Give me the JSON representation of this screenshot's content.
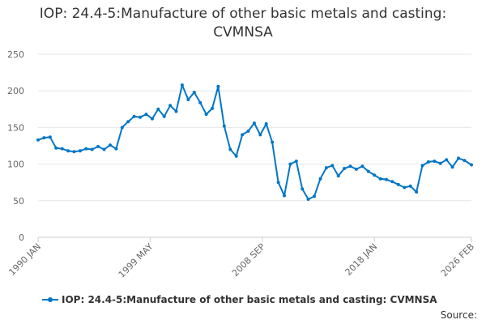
{
  "chart_data": {
    "type": "line",
    "title_line1": "IOP: 24.4-5:Manufacture of other basic metals and casting:",
    "title_line2": "CVMNSA",
    "y_ticks": [
      "0",
      "50",
      "100",
      "150",
      "200",
      "250"
    ],
    "ylim": [
      0,
      250
    ],
    "x_ticks": [
      "1990 JAN",
      "1999 MAY",
      "2008 SEP",
      "2018 JAN",
      "2026 FEB"
    ],
    "x_tick_decimal_years": [
      1990.0,
      1999.33,
      2008.67,
      2018.0,
      2026.08
    ],
    "xlim": [
      1990.0,
      2026.08
    ],
    "grid": true,
    "legend_position": "bottom",
    "color": "#0076c6",
    "source_label": "Source:",
    "series": [
      {
        "name": "IOP: 24.4-5:Manufacture of other basic metals and casting: CVMNSA",
        "x": [
          1990.0,
          1990.5,
          1991.0,
          1991.5,
          1992.0,
          1992.5,
          1993.0,
          1993.5,
          1994.0,
          1994.5,
          1995.0,
          1995.5,
          1996.0,
          1996.5,
          1997.0,
          1997.5,
          1998.0,
          1998.5,
          1999.0,
          1999.5,
          2000.0,
          2000.5,
          2001.0,
          2001.5,
          2002.0,
          2002.5,
          2003.0,
          2003.5,
          2004.0,
          2004.5,
          2005.0,
          2005.5,
          2006.0,
          2006.5,
          2007.0,
          2007.5,
          2008.0,
          2008.5,
          2009.0,
          2009.5,
          2010.0,
          2010.5,
          2011.0,
          2011.5,
          2012.0,
          2012.5,
          2013.0,
          2013.5,
          2014.0,
          2014.5,
          2015.0,
          2015.5,
          2016.0,
          2016.5,
          2017.0,
          2017.5,
          2018.0,
          2018.5,
          2019.0,
          2019.5,
          2020.0,
          2020.5,
          2021.0,
          2021.5,
          2022.0,
          2022.5,
          2023.0,
          2023.5,
          2024.0,
          2024.5,
          2025.0,
          2025.5,
          2026.08
        ],
        "values": [
          133,
          136,
          137,
          122,
          121,
          118,
          117,
          118,
          121,
          120,
          124,
          120,
          126,
          121,
          150,
          158,
          165,
          164,
          168,
          162,
          175,
          165,
          180,
          172,
          208,
          188,
          198,
          184,
          168,
          176,
          206,
          152,
          120,
          111,
          140,
          145,
          156,
          140,
          155,
          130,
          75,
          57,
          100,
          104,
          66,
          52,
          56,
          80,
          95,
          98,
          84,
          94,
          97,
          93,
          97,
          90,
          85,
          80,
          79,
          76,
          72,
          68,
          70,
          62,
          98,
          103,
          104,
          101,
          106,
          96,
          108,
          105,
          99
        ]
      }
    ]
  }
}
